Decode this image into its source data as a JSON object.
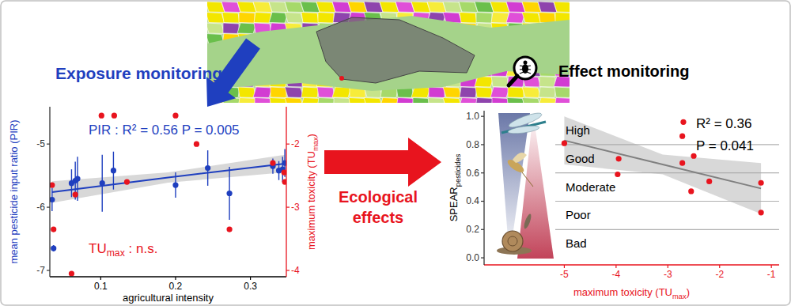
{
  "chart_data": [
    {
      "type": "scatter",
      "x_label": "agricultural intensity",
      "y_label": "mean pesticide input ratio (PIR)",
      "y2_label": [
        "maximum toxicity (TU",
        "max",
        ")"
      ],
      "xlim": [
        0.032,
        0.348
      ],
      "xticks": [
        0.1,
        0.2,
        0.3
      ],
      "ylim": [
        -7.1,
        -4.41
      ],
      "yticks": [
        -7,
        -6,
        -5
      ],
      "y2lim": [
        -4.1,
        -1.41
      ],
      "y2ticks": [
        -4,
        -3,
        -2
      ],
      "series": [
        {
          "color": "#1f3fbf",
          "marker": "circle",
          "x": [
            0.035,
            0.037,
            0.061,
            0.066,
            0.069,
            0.102,
            0.117,
            0.2,
            0.243,
            0.272,
            0.33,
            0.338,
            0.343,
            0.346
          ],
          "values": [
            -5.88,
            -6.65,
            -5.62,
            -5.58,
            -5.55,
            -5.62,
            -5.42,
            -5.65,
            -5.38,
            -5.78,
            -5.35,
            -5.42,
            -5.4,
            -5.3
          ],
          "errors": [
            0.18,
            0.05,
            0.22,
            0.3,
            0.35,
            0.45,
            0.3,
            0.2,
            0.28,
            0.42,
            0.12,
            0.15,
            0.2,
            0.22
          ]
        },
        {
          "color": "#e8141e",
          "marker": "circle",
          "axis": "y2",
          "x": [
            0.035,
            0.037,
            0.061,
            0.066,
            0.101,
            0.118,
            0.135,
            0.2,
            0.228,
            0.272,
            0.33,
            0.345,
            0.346
          ],
          "values": [
            -2.65,
            -3.35,
            -4.05,
            -2.8,
            -1.55,
            -1.55,
            -2.6,
            -1.55,
            -2.0,
            -3.35,
            -2.3,
            -2.45,
            -2.6
          ]
        }
      ],
      "fit": {
        "x": [
          0.035,
          0.19,
          0.346
        ],
        "values": [
          -5.76,
          -5.53,
          -5.31
        ],
        "lower": [
          -5.93,
          -5.61,
          -5.45
        ],
        "upper": [
          -5.59,
          -5.45,
          -5.17
        ]
      },
      "annotations": [
        {
          "text": [
            "PIR :  R² = 0.56   P = 0.005"
          ],
          "color": "#1f3fbf"
        },
        {
          "text": [
            "TU",
            "max",
            " :  n.s."
          ],
          "color": "#e8141e"
        }
      ]
    },
    {
      "type": "scatter",
      "x_label": [
        "maximum toxicity (TU",
        "max",
        ")"
      ],
      "y_label": [
        "SPEAR",
        "pesticides"
      ],
      "xlim": [
        -6.55,
        -0.85
      ],
      "xticks": [
        -5,
        -4,
        -3,
        -2,
        -1
      ],
      "ylim": [
        -0.05,
        1.04
      ],
      "yticks": [
        {
          "value": 0,
          "label": "0.0"
        },
        {
          "value": 0.2,
          "label": "0.2"
        },
        {
          "value": 0.4,
          "label": "0.4"
        },
        {
          "value": 0.6,
          "label": "0.6"
        },
        {
          "value": 0.8,
          "label": "0.8"
        },
        {
          "value": 1,
          "label": "1.0"
        }
      ],
      "series": [
        {
          "color": "#e8141e",
          "marker": "circle",
          "x": [
            -5.0,
            -2.7,
            -2.72,
            -3.95,
            -3.97,
            -2.72,
            -2.5,
            -2.55,
            -2.2,
            -1.2,
            -1.2
          ],
          "values": [
            0.81,
            0.96,
            0.86,
            0.7,
            0.59,
            0.67,
            0.72,
            0.47,
            0.54,
            0.53,
            0.32
          ]
        }
      ],
      "fit": {
        "x": [
          -5.0,
          -3.1,
          -1.2
        ],
        "values": [
          0.83,
          0.66,
          0.49
        ],
        "lower": [
          0.66,
          0.59,
          0.31
        ],
        "upper": [
          1.0,
          0.73,
          0.67
        ]
      },
      "classes": [
        {
          "label": "High",
          "lower": 0.8,
          "upper": 1.0
        },
        {
          "label": "Good",
          "lower": 0.6,
          "upper": 0.8
        },
        {
          "label": "Moderate",
          "lower": 0.4,
          "upper": 0.6
        },
        {
          "label": "Poor",
          "lower": 0.2,
          "upper": 0.4
        },
        {
          "label": "Bad",
          "lower": 0.0,
          "upper": 0.2
        }
      ],
      "annotations": [
        {
          "text": [
            "R² = 0.36"
          ],
          "color": "#000000"
        },
        {
          "text": [
            "P = 0.041"
          ],
          "color": "#000000"
        }
      ]
    }
  ],
  "labels": {
    "exposure": "Exposure monitoring",
    "effect": "Effect monitoring",
    "effects_arrow": [
      "Ecological",
      "effects"
    ]
  }
}
